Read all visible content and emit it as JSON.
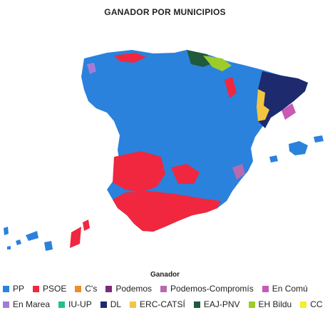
{
  "title": "GANADOR POR MUNICIPIOS",
  "legend": {
    "title": "Ganador",
    "items": [
      {
        "label": "PP",
        "color": "#2a82dc"
      },
      {
        "label": "PSOE",
        "color": "#f0273f"
      },
      {
        "label": "C's",
        "color": "#f08c2a"
      },
      {
        "label": "Podemos",
        "color": "#7b2a7a"
      },
      {
        "label": "Podemos-Compromís",
        "color": "#b56bb0"
      },
      {
        "label": "En Comú",
        "color": "#c85ab4"
      },
      {
        "label": "En Marea",
        "color": "#a47cd6"
      },
      {
        "label": "IU-UP",
        "color": "#20c08c"
      },
      {
        "label": "DL",
        "color": "#1e2a6e"
      },
      {
        "label": "ERC-CATSÍ",
        "color": "#f4c542"
      },
      {
        "label": "EAJ-PNV",
        "color": "#1f5a3c"
      },
      {
        "label": "EH Bildu",
        "color": "#9ccc2a"
      },
      {
        "label": "CC",
        "color": "#f2ee2a"
      }
    ]
  }
}
